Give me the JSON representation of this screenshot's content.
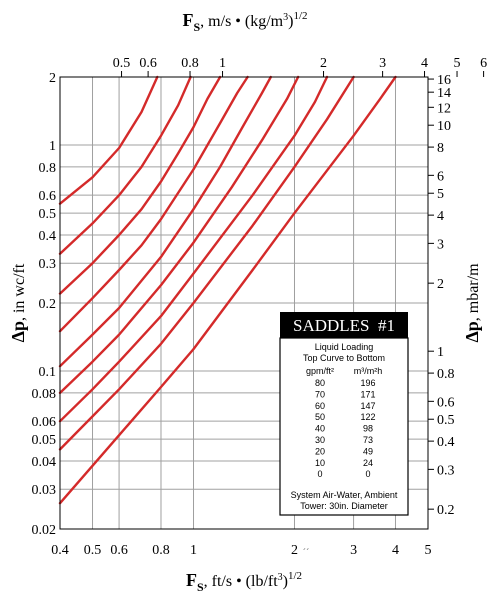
{
  "chart_data": {
    "type": "line",
    "x_axis_bottom": {
      "label_symbol": "F",
      "label_sub": "S",
      "label_units": ", ft/s • (lb/ft",
      "label_units_sup": "3",
      "label_units_close": ")",
      "label_power": "1/2",
      "scale": "log",
      "range": [
        0.4,
        5
      ],
      "ticks": [
        0.4,
        0.5,
        0.6,
        0.8,
        1,
        2,
        3,
        4,
        5
      ],
      "tick_labels": [
        "0.4",
        "0.5",
        "0.6",
        "0.8",
        "1",
        "2",
        "3",
        "4",
        "5"
      ],
      "stray_mark": "´´"
    },
    "x_axis_top": {
      "label_symbol": "F",
      "label_sub": "S",
      "label_units": ", m/s • (kg/m",
      "label_units_sup": "3",
      "label_units_close": ")",
      "label_power": "1/2",
      "scale": "log",
      "conversion_factor": 1.2205,
      "ticks": [
        0.5,
        0.6,
        0.8,
        1,
        2,
        3,
        4,
        5,
        6
      ],
      "tick_labels": [
        "0.5",
        "0.6",
        "0.8",
        "1",
        "2",
        "3",
        "4",
        "5",
        "6"
      ]
    },
    "y_axis_left": {
      "label_symbol": "Δp",
      "label_units": ", in wc/ft",
      "scale": "log",
      "range": [
        0.02,
        2
      ],
      "ticks": [
        0.02,
        0.03,
        0.04,
        0.05,
        0.06,
        0.08,
        0.1,
        0.2,
        0.3,
        0.4,
        0.5,
        0.6,
        0.8,
        1,
        2
      ],
      "tick_labels": [
        "0.02",
        "0.03",
        "0.04",
        "0.05",
        "0.06",
        "0.08",
        "0.1",
        "0.2",
        "0.3",
        "0.4",
        "0.5",
        "0.6",
        "0.8",
        "1",
        "2"
      ]
    },
    "y_axis_right": {
      "label_symbol": "Δp",
      "label_units": ", mbar/m",
      "scale": "log",
      "conversion_factor": 8.17,
      "ticks": [
        0.2,
        0.3,
        0.4,
        0.5,
        0.6,
        0.8,
        1,
        2,
        3,
        4,
        5,
        6,
        8,
        10,
        12,
        14,
        16
      ],
      "tick_labels": [
        "0.2",
        "0.3",
        "0.4",
        "0.5",
        "0.6",
        "0.8",
        "1",
        "2",
        "3",
        "4",
        "5",
        "6",
        "8",
        "10",
        "12",
        "14",
        "16"
      ]
    },
    "grid": true,
    "legend": {
      "title": "SADDLES  #1",
      "placement": "right",
      "header_line1": "Liquid Loading",
      "header_line2": "Top Curve to Bottom",
      "col1_header": "gpm/ft²",
      "col2_header": "m³/m²h",
      "rows": [
        [
          "80",
          "196"
        ],
        [
          "70",
          "171"
        ],
        [
          "60",
          "147"
        ],
        [
          "50",
          "122"
        ],
        [
          "40",
          "98"
        ],
        [
          "30",
          "73"
        ],
        [
          "20",
          "49"
        ],
        [
          "10",
          "24"
        ],
        [
          "0",
          "0"
        ]
      ],
      "footer_line1": "System Air-Water, Ambient",
      "footer_line2": "Tower: 30in. Diameter"
    },
    "colors": {
      "curve": "#d42a2a",
      "grid": "#a0a0a0",
      "legend_title_bg": "#000000"
    },
    "series": [
      {
        "loading": "80",
        "points": [
          [
            0.4,
            0.55
          ],
          [
            0.5,
            0.72
          ],
          [
            0.6,
            0.97
          ],
          [
            0.7,
            1.4
          ],
          [
            0.78,
            2.0
          ]
        ]
      },
      {
        "loading": "70",
        "points": [
          [
            0.4,
            0.33
          ],
          [
            0.5,
            0.45
          ],
          [
            0.6,
            0.6
          ],
          [
            0.7,
            0.8
          ],
          [
            0.8,
            1.1
          ],
          [
            0.9,
            1.5
          ],
          [
            0.98,
            2.0
          ]
        ]
      },
      {
        "loading": "60",
        "points": [
          [
            0.4,
            0.22
          ],
          [
            0.5,
            0.3
          ],
          [
            0.6,
            0.4
          ],
          [
            0.7,
            0.52
          ],
          [
            0.8,
            0.69
          ],
          [
            0.9,
            0.92
          ],
          [
            1.0,
            1.2
          ],
          [
            1.1,
            1.6
          ],
          [
            1.2,
            2.0
          ]
        ]
      },
      {
        "loading": "50",
        "points": [
          [
            0.4,
            0.15
          ],
          [
            0.5,
            0.21
          ],
          [
            0.6,
            0.28
          ],
          [
            0.7,
            0.36
          ],
          [
            0.8,
            0.47
          ],
          [
            1.0,
            0.78
          ],
          [
            1.2,
            1.25
          ],
          [
            1.35,
            1.7
          ],
          [
            1.45,
            2.0
          ]
        ]
      },
      {
        "loading": "40",
        "points": [
          [
            0.4,
            0.105
          ],
          [
            0.5,
            0.145
          ],
          [
            0.6,
            0.19
          ],
          [
            0.8,
            0.32
          ],
          [
            1.0,
            0.52
          ],
          [
            1.2,
            0.8
          ],
          [
            1.4,
            1.2
          ],
          [
            1.6,
            1.7
          ],
          [
            1.7,
            2.0
          ]
        ]
      },
      {
        "loading": "30",
        "points": [
          [
            0.4,
            0.08
          ],
          [
            0.5,
            0.11
          ],
          [
            0.6,
            0.145
          ],
          [
            0.8,
            0.24
          ],
          [
            1.0,
            0.37
          ],
          [
            1.3,
            0.65
          ],
          [
            1.6,
            1.05
          ],
          [
            1.9,
            1.6
          ],
          [
            2.05,
            2.0
          ]
        ]
      },
      {
        "loading": "20",
        "points": [
          [
            0.4,
            0.06
          ],
          [
            0.5,
            0.083
          ],
          [
            0.6,
            0.11
          ],
          [
            0.8,
            0.175
          ],
          [
            1.0,
            0.27
          ],
          [
            1.5,
            0.6
          ],
          [
            2.0,
            1.1
          ],
          [
            2.3,
            1.55
          ],
          [
            2.5,
            2.0
          ]
        ]
      },
      {
        "loading": "10",
        "points": [
          [
            0.4,
            0.045
          ],
          [
            0.5,
            0.063
          ],
          [
            0.6,
            0.083
          ],
          [
            0.8,
            0.132
          ],
          [
            1.0,
            0.2
          ],
          [
            1.5,
            0.44
          ],
          [
            2.0,
            0.8
          ],
          [
            2.5,
            1.3
          ],
          [
            3.0,
            2.0
          ]
        ]
      },
      {
        "loading": "0",
        "points": [
          [
            0.4,
            0.026
          ],
          [
            0.6,
            0.052
          ],
          [
            0.8,
            0.085
          ],
          [
            1.0,
            0.125
          ],
          [
            1.5,
            0.28
          ],
          [
            2.0,
            0.5
          ],
          [
            3.0,
            1.1
          ],
          [
            3.6,
            1.6
          ],
          [
            4.0,
            2.0
          ]
        ]
      }
    ]
  }
}
